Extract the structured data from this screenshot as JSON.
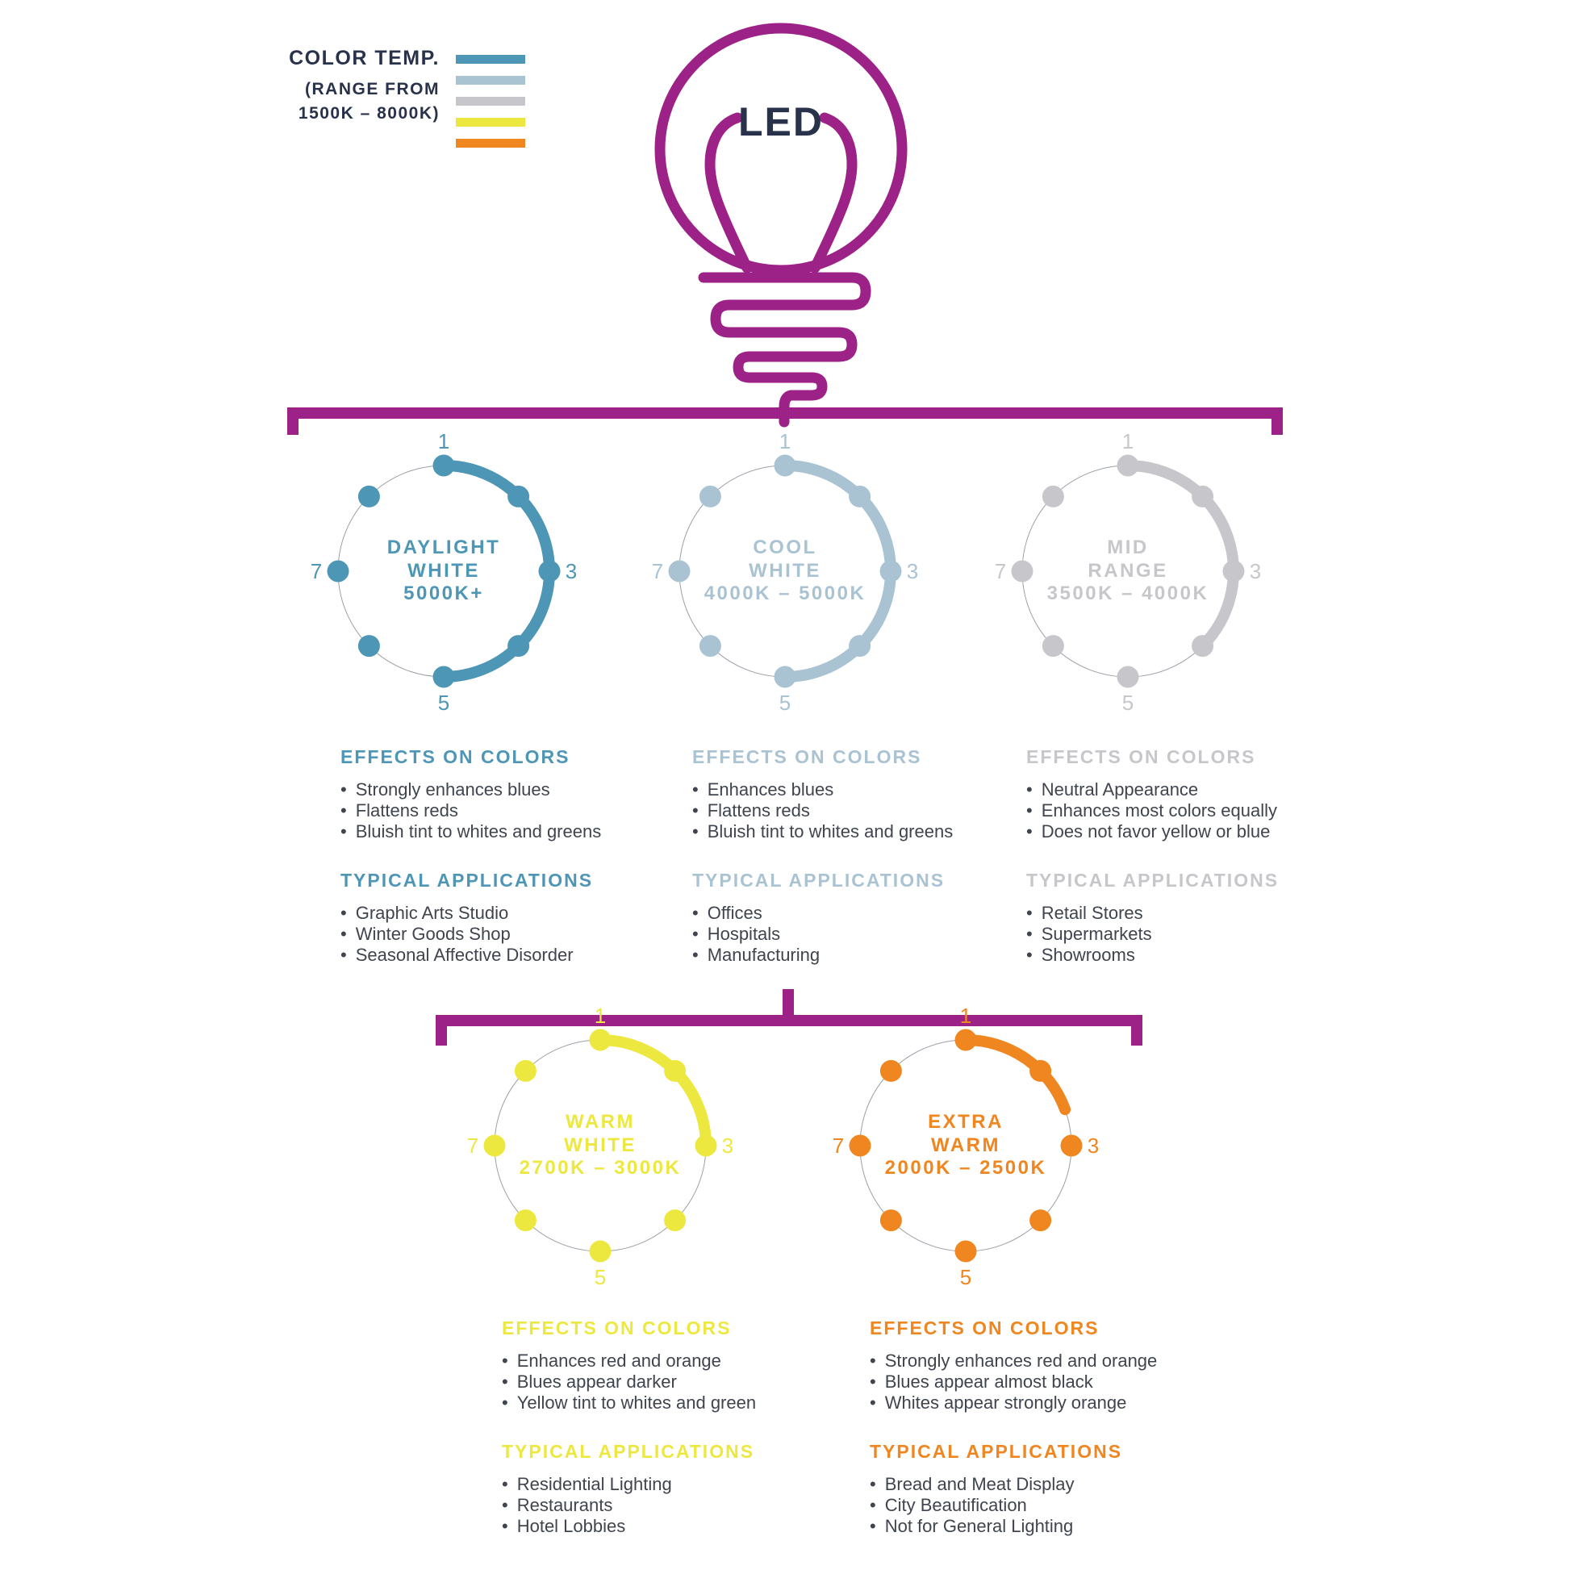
{
  "legend": {
    "title": "COLOR TEMP.",
    "subtitle_lines": [
      "(RANGE FROM",
      "1500K – 8000K)"
    ],
    "swatches": [
      {
        "name": "daylight-white-swatch",
        "color": "#4E96B5"
      },
      {
        "name": "cool-white-swatch",
        "color": "#A9C3D3"
      },
      {
        "name": "mid-range-swatch",
        "color": "#C7C6CA"
      },
      {
        "name": "warm-white-swatch",
        "color": "#EDE83F"
      },
      {
        "name": "extra-warm-swatch",
        "color": "#EF861F"
      }
    ]
  },
  "bulb": {
    "label": "LED"
  },
  "dial_numbers": [
    "1",
    "3",
    "5",
    "7"
  ],
  "colors": {
    "magenta": "#9D2287",
    "navy": "#28324A",
    "body_text": "#3F444E"
  },
  "temperatures": [
    {
      "id": "daylight-white",
      "label_lines": [
        "DAYLIGHT",
        "WHITE"
      ],
      "range": "5000K+",
      "color": "#4E96B5",
      "arc_end_deg": 180,
      "effects": {
        "title": "EFFECTS ON COLORS",
        "items": [
          "Strongly enhances blues",
          "Flattens reds",
          "Bluish tint to whites and greens"
        ]
      },
      "applications": {
        "title": "TYPICAL APPLICATIONS",
        "items": [
          "Graphic Arts Studio",
          "Winter Goods Shop",
          "Seasonal Affective Disorder"
        ]
      }
    },
    {
      "id": "cool-white",
      "label_lines": [
        "COOL",
        "WHITE"
      ],
      "range": "4000K – 5000K",
      "color": "#A9C3D3",
      "arc_end_deg": 180,
      "effects": {
        "title": "EFFECTS ON COLORS",
        "items": [
          "Enhances blues",
          "Flattens reds",
          "Bluish tint to whites and greens"
        ]
      },
      "applications": {
        "title": "TYPICAL APPLICATIONS",
        "items": [
          "Offices",
          "Hospitals",
          "Manufacturing"
        ]
      }
    },
    {
      "id": "mid-range",
      "label_lines": [
        "MID",
        "RANGE"
      ],
      "range": "3500K – 4000K",
      "color": "#C7C6CA",
      "arc_end_deg": 135,
      "effects": {
        "title": "EFFECTS ON COLORS",
        "items": [
          "Neutral Appearance",
          "Enhances most colors equally",
          "Does not favor yellow or blue"
        ]
      },
      "applications": {
        "title": "TYPICAL APPLICATIONS",
        "items": [
          "Retail Stores",
          "Supermarkets",
          "Showrooms"
        ]
      }
    },
    {
      "id": "warm-white",
      "label_lines": [
        "WARM",
        "WHITE"
      ],
      "range": "2700K – 3000K",
      "color": "#EDE83F",
      "arc_end_deg": 90,
      "effects": {
        "title": "EFFECTS ON COLORS",
        "items": [
          "Enhances red and orange",
          "Blues appear darker",
          "Yellow tint to whites and green"
        ]
      },
      "applications": {
        "title": "TYPICAL APPLICATIONS",
        "items": [
          "Residential Lighting",
          "Restaurants",
          "Hotel Lobbies"
        ]
      }
    },
    {
      "id": "extra-warm",
      "label_lines": [
        "EXTRA",
        "WARM"
      ],
      "range": "2000K – 2500K",
      "color": "#EF861F",
      "arc_end_deg": 70,
      "effects": {
        "title": "EFFECTS ON COLORS",
        "items": [
          "Strongly enhances red and orange",
          "Blues appear almost black",
          "Whites appear strongly orange"
        ]
      },
      "applications": {
        "title": "TYPICAL APPLICATIONS",
        "items": [
          "Bread and Meat Display",
          "City Beautification",
          "Not for General Lighting"
        ]
      }
    }
  ]
}
